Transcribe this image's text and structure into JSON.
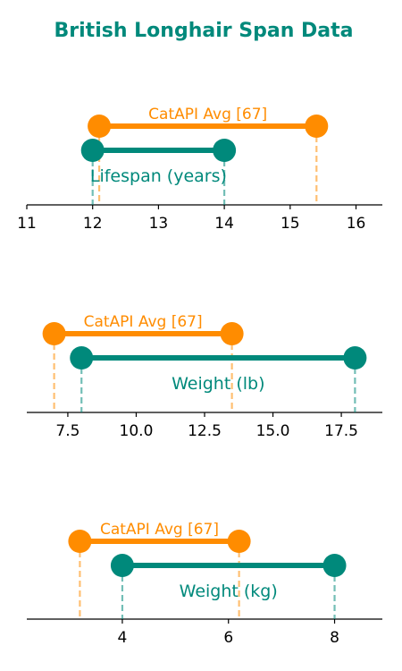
{
  "chart_data": {
    "type": "range-dumbbell",
    "title": "British Longhair Span Data",
    "colors": {
      "primary": "#00897b",
      "reference": "#ff8c00",
      "title": "#00897b",
      "axis": "#000000"
    },
    "panels": [
      {
        "label": "Lifespan (years)",
        "xlim": [
          11,
          16.4
        ],
        "ticks": [
          11,
          12,
          13,
          14,
          15,
          16
        ],
        "tick_labels": [
          "11",
          "12",
          "13",
          "14",
          "15",
          "16"
        ],
        "range": [
          12,
          14
        ],
        "reference": {
          "label": "CatAPI Avg [67]",
          "range": [
            12.1,
            15.4
          ]
        }
      },
      {
        "label": "Weight (lb)",
        "xlim": [
          6.0,
          19.0
        ],
        "ticks": [
          7.5,
          10.0,
          12.5,
          15.0,
          17.5
        ],
        "tick_labels": [
          "7.5",
          "10.0",
          "12.5",
          "15.0",
          "17.5"
        ],
        "range": [
          8,
          18
        ],
        "reference": {
          "label": "CatAPI Avg [67]",
          "range": [
            7.0,
            13.5
          ]
        }
      },
      {
        "label": "Weight (kg)",
        "xlim": [
          2.2,
          8.9
        ],
        "ticks": [
          4,
          6,
          8
        ],
        "tick_labels": [
          "4",
          "6",
          "8"
        ],
        "range": [
          4,
          8
        ],
        "reference": {
          "label": "CatAPI Avg [67]",
          "range": [
            3.2,
            6.2
          ]
        }
      }
    ]
  }
}
